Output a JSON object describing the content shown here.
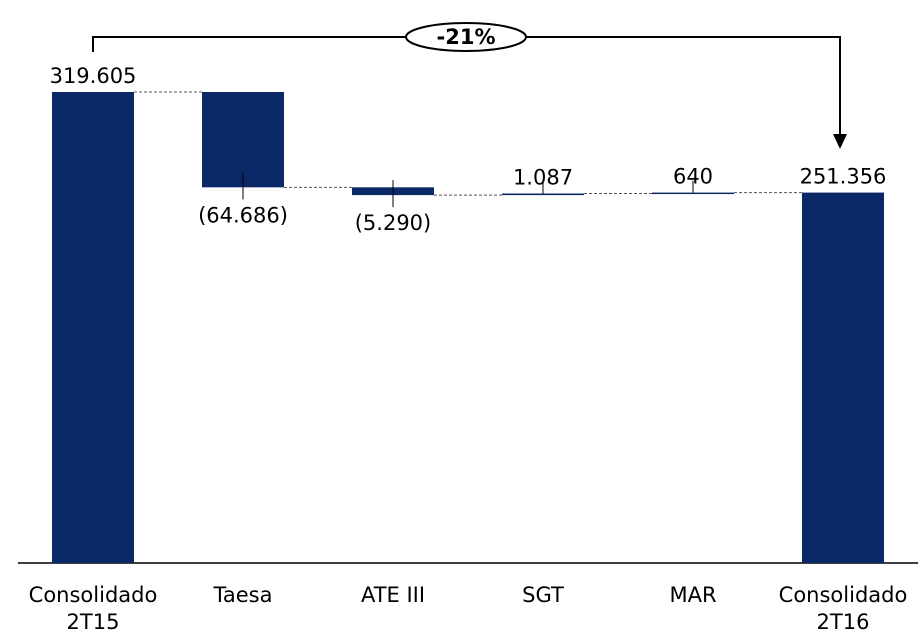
{
  "chart_data": {
    "type": "waterfall",
    "categories": [
      "Consolidado\n2T15",
      "Taesa",
      "ATE III",
      "SGT",
      "MAR",
      "Consolidado\n2T16"
    ],
    "values": [
      319605,
      -64686,
      -5290,
      1087,
      640,
      251356
    ],
    "value_labels": [
      "319.605",
      "(64.686)",
      "(5.290)",
      "1.087",
      "640",
      "251.356"
    ],
    "measures": [
      "total",
      "relative",
      "relative",
      "relative",
      "relative",
      "total"
    ],
    "color": "#0b2866",
    "annotation": "-21%"
  }
}
